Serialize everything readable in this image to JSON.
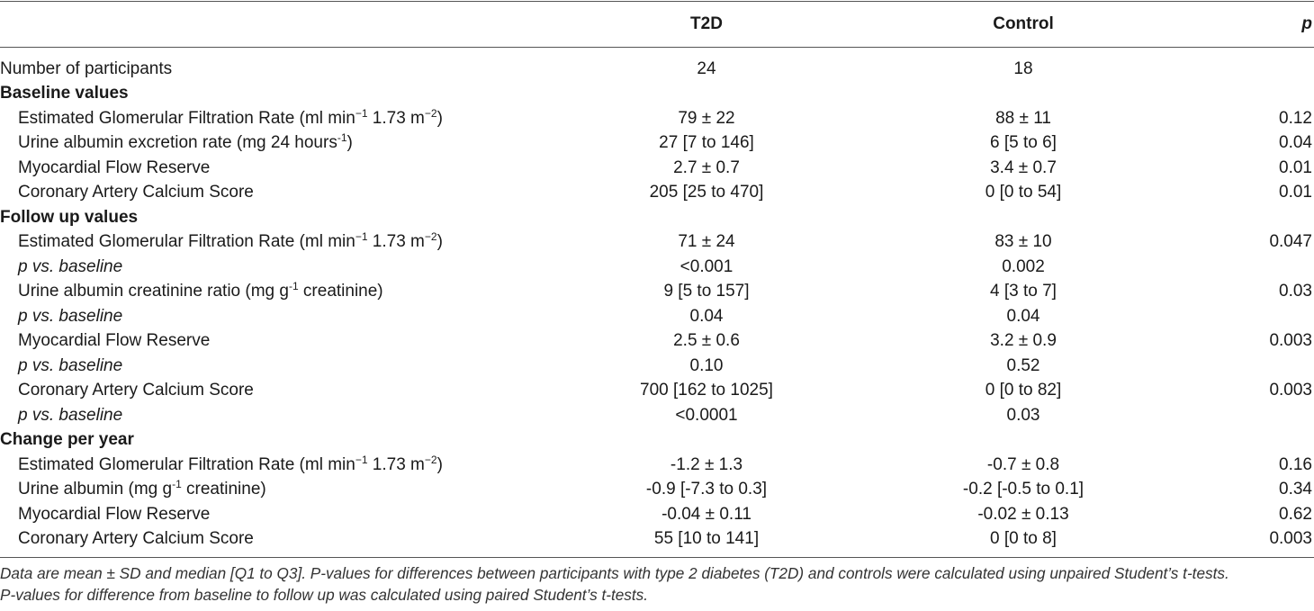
{
  "header": {
    "col1": "",
    "col2": "T2D",
    "col3": "Control",
    "col4": "p"
  },
  "participants": {
    "label": "Number of participants",
    "t2d": "24",
    "control": "18",
    "p": ""
  },
  "sections": [
    {
      "title": "Baseline values",
      "rows": [
        {
          "label": "Estimated Glomerular Filtration Rate (ml min",
          "sup1": "−1",
          "mid": " 1.73 m",
          "sup2": "−2",
          "end": ")",
          "t2d": "79 ± 22",
          "control": "88 ± 11",
          "p": "0.12",
          "italic": false
        },
        {
          "label": "Urine albumin excretion rate (mg 24 hours",
          "sup1": "-1",
          "mid": ")",
          "sup2": "",
          "end": "",
          "t2d": "27 [7 to 146]",
          "control": "6 [5 to 6]",
          "p": "0.04",
          "italic": false
        },
        {
          "label": "Myocardial Flow Reserve",
          "sup1": "",
          "mid": "",
          "sup2": "",
          "end": "",
          "t2d": "2.7 ± 0.7",
          "control": "3.4 ± 0.7",
          "p": "0.01",
          "italic": false
        },
        {
          "label": "Coronary Artery Calcium Score",
          "sup1": "",
          "mid": "",
          "sup2": "",
          "end": "",
          "t2d": "205 [25 to 470]",
          "control": "0 [0 to 54]",
          "p": "0.01",
          "italic": false
        }
      ]
    },
    {
      "title": "Follow up values",
      "rows": [
        {
          "label": "Estimated Glomerular Filtration Rate (ml min",
          "sup1": "−1",
          "mid": " 1.73 m",
          "sup2": "−2",
          "end": ")",
          "t2d": "71 ± 24",
          "control": "83 ± 10",
          "p": "0.047",
          "italic": false
        },
        {
          "label": "p vs. baseline",
          "sup1": "",
          "mid": "",
          "sup2": "",
          "end": "",
          "t2d": "<0.001",
          "control": "0.002",
          "p": "",
          "italic": true
        },
        {
          "label": "Urine albumin creatinine ratio (mg g",
          "sup1": "-1",
          "mid": " creatinine)",
          "sup2": "",
          "end": "",
          "t2d": "9 [5 to 157]",
          "control": "4 [3 to 7]",
          "p": "0.03",
          "italic": false
        },
        {
          "label": "p vs. baseline",
          "sup1": "",
          "mid": "",
          "sup2": "",
          "end": "",
          "t2d": "0.04",
          "control": "0.04",
          "p": "",
          "italic": true
        },
        {
          "label": "Myocardial Flow Reserve",
          "sup1": "",
          "mid": "",
          "sup2": "",
          "end": "",
          "t2d": "2.5 ± 0.6",
          "control": "3.2 ± 0.9",
          "p": "0.003",
          "italic": false
        },
        {
          "label": "p vs. baseline",
          "sup1": "",
          "mid": "",
          "sup2": "",
          "end": "",
          "t2d": "0.10",
          "control": "0.52",
          "p": "",
          "italic": true
        },
        {
          "label": "Coronary Artery Calcium Score",
          "sup1": "",
          "mid": "",
          "sup2": "",
          "end": "",
          "t2d": "700 [162 to 1025]",
          "control": "0 [0 to 82]",
          "p": "0.003",
          "italic": false
        },
        {
          "label": "p vs. baseline",
          "sup1": "",
          "mid": "",
          "sup2": "",
          "end": "",
          "t2d": "<0.0001",
          "control": "0.03",
          "p": "",
          "italic": true
        }
      ]
    },
    {
      "title": "Change per year",
      "rows": [
        {
          "label": "Estimated Glomerular Filtration Rate (ml min",
          "sup1": "−1",
          "mid": " 1.73 m",
          "sup2": "−2",
          "end": ")",
          "t2d": "-1.2 ± 1.3",
          "control": "-0.7 ± 0.8",
          "p": "0.16",
          "italic": false
        },
        {
          "label": "Urine albumin (mg g",
          "sup1": "-1",
          "mid": " creatinine)",
          "sup2": "",
          "end": "",
          "t2d": "-0.9 [-7.3 to 0.3]",
          "control": "-0.2 [-0.5 to 0.1]",
          "p": "0.34",
          "italic": false
        },
        {
          "label": "Myocardial Flow Reserve",
          "sup1": "",
          "mid": "",
          "sup2": "",
          "end": "",
          "t2d": "-0.04 ± 0.11",
          "control": "-0.02 ± 0.13",
          "p": "0.62",
          "italic": false
        },
        {
          "label": "Coronary Artery Calcium Score",
          "sup1": "",
          "mid": "",
          "sup2": "",
          "end": "",
          "t2d": "55 [10 to 141]",
          "control": "0 [0 to 8]",
          "p": "0.003",
          "italic": false
        }
      ]
    }
  ],
  "footnote": {
    "line1": "Data are mean ± SD and median [Q1 to Q3]. P-values for differences between participants with type 2 diabetes (T2D) and controls were calculated using unpaired Student’s t-tests.",
    "line2": "P-values for difference from baseline to follow up was calculated using paired Student’s t-tests."
  }
}
